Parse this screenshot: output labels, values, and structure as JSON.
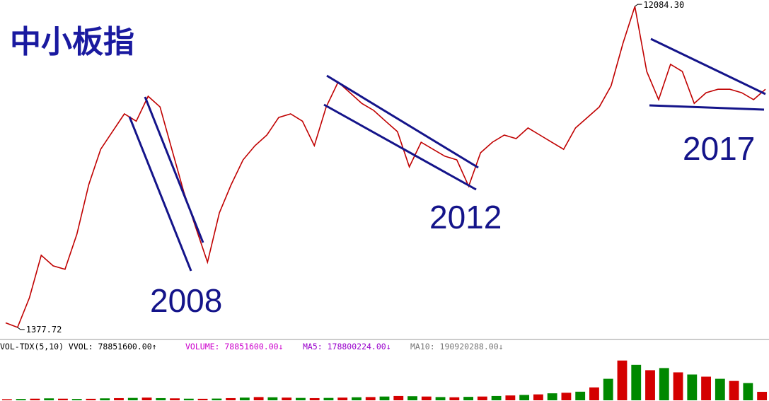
{
  "chart_data": [
    {
      "type": "line",
      "title": "中小板指",
      "log": true,
      "ylim": [
        1300,
        12500
      ],
      "color": "#c00000",
      "values": [
        1420,
        1377.72,
        1683,
        2244,
        2089,
        2040,
        2590,
        3620,
        4595,
        5180,
        5840,
        5560,
        6580,
        6120,
        4595,
        3450,
        2715,
        2140,
        2990,
        3620,
        4280,
        4710,
        5060,
        5700,
        5840,
        5560,
        4710,
        6120,
        7240,
        6740,
        6270,
        5980,
        5560,
        5180,
        4080,
        4820,
        4595,
        4385,
        4280,
        3580,
        4490,
        4820,
        5060,
        4940,
        5310,
        5060,
        4820,
        4595,
        5310,
        5700,
        6120,
        7060,
        9420,
        12084.3,
        7780,
        6430,
        8170,
        7780,
        6270,
        6740,
        6900,
        6900,
        6740,
        6430,
        6900
      ],
      "extreme_labels": {
        "max": "12084.30",
        "min": "1377.72"
      },
      "annotations": [
        "2008",
        "2012",
        "2017"
      ]
    },
    {
      "type": "bar",
      "ylim": [
        0,
        500000000
      ],
      "colors": [
        "#d40000",
        "#008800"
      ],
      "header": [
        "VOL-TDX(5,10) VVOL: 78851600.00↑",
        "VOLUME: 78851600.00↓",
        "MA5: 178800224.00↓",
        "MA10: 190920288.00↓"
      ],
      "values": [
        10000000,
        12000000,
        15000000,
        18000000,
        15000000,
        12000000,
        14000000,
        18000000,
        20000000,
        22000000,
        25000000,
        20000000,
        18000000,
        15000000,
        14000000,
        16000000,
        20000000,
        25000000,
        30000000,
        28000000,
        25000000,
        22000000,
        20000000,
        22000000,
        25000000,
        28000000,
        30000000,
        35000000,
        40000000,
        38000000,
        35000000,
        30000000,
        28000000,
        32000000,
        35000000,
        40000000,
        45000000,
        50000000,
        55000000,
        65000000,
        70000000,
        80000000,
        120000000,
        200000000,
        370000000,
        330000000,
        280000000,
        300000000,
        260000000,
        240000000,
        220000000,
        200000000,
        180000000,
        160000000,
        78851600
      ]
    }
  ]
}
